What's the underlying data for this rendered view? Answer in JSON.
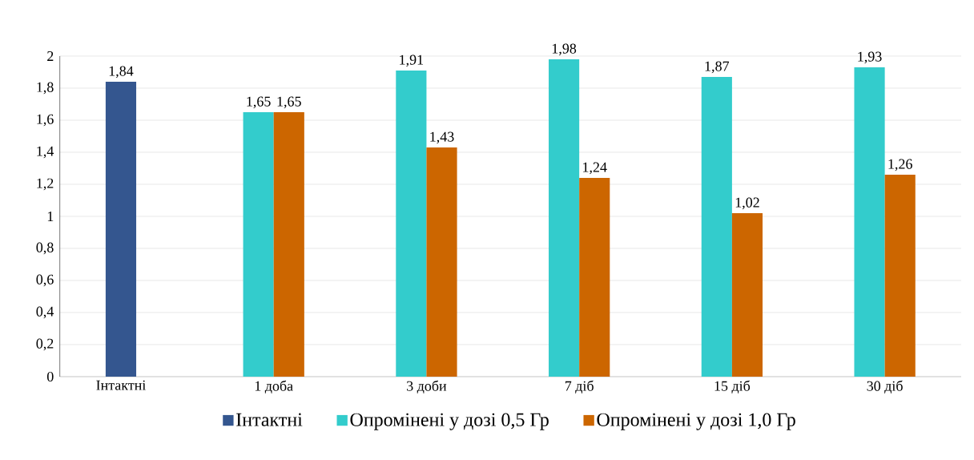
{
  "chart_data": {
    "type": "bar",
    "categories": [
      "Інтактні",
      "1 доба",
      "3 доби",
      "7 діб",
      "15 діб",
      "30 діб"
    ],
    "series": [
      {
        "name": "Інтактні",
        "color": "#34568f",
        "values": [
          1.84,
          null,
          null,
          null,
          null,
          null
        ],
        "value_labels": [
          "1,84",
          null,
          null,
          null,
          null,
          null
        ]
      },
      {
        "name": "Опромінені у дозі 0,5 Гр",
        "color": "#33cccc",
        "values": [
          null,
          1.65,
          1.91,
          1.98,
          1.87,
          1.93
        ],
        "value_labels": [
          null,
          "1,65",
          "1,91",
          "1,98",
          "1,87",
          "1,93"
        ]
      },
      {
        "name": "Опромінені у дозі 1,0 Гр",
        "color": "#cc6600",
        "values": [
          null,
          1.65,
          1.43,
          1.24,
          1.02,
          1.26
        ],
        "value_labels": [
          null,
          "1,65",
          "1,43",
          "1,24",
          "1,02",
          "1,26"
        ]
      }
    ],
    "ylim": [
      0,
      2
    ],
    "yticks": [
      0,
      {
        "value": 0.2,
        "label": "0,2"
      },
      {
        "value": 0.4,
        "label": "0,4"
      },
      {
        "value": 0.6,
        "label": "0,6"
      },
      {
        "value": 0.8,
        "label": "0,8"
      },
      1,
      {
        "value": 1.2,
        "label": "1,2"
      },
      {
        "value": 1.4,
        "label": "1,4"
      },
      {
        "value": 1.6,
        "label": "1,6"
      },
      {
        "value": 1.8,
        "label": "1,8"
      },
      2
    ],
    "grid": "y",
    "legend": "bottom"
  }
}
